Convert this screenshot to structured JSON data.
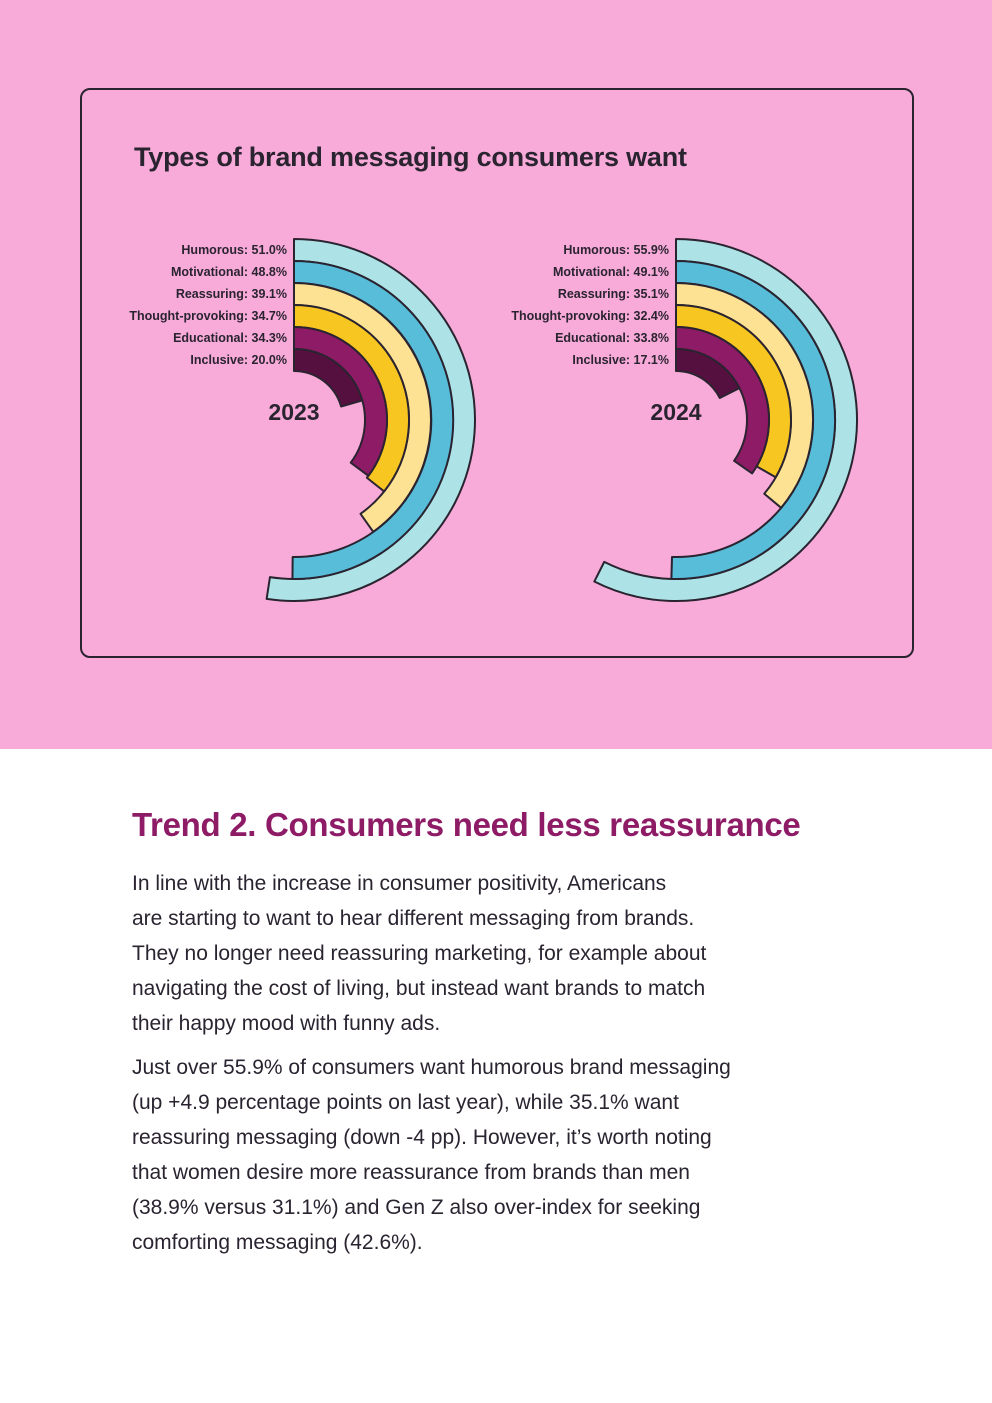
{
  "chart": {
    "title": "Types of brand messaging consumers want"
  },
  "colors": {
    "background_pink": "#f8abd9",
    "heading_purple": "#8e1b66",
    "outline": "#2a2330",
    "series": [
      "#ade3e7",
      "#57bdd9",
      "#fde294",
      "#f8c620",
      "#8e1b66",
      "#561040"
    ]
  },
  "chart_data": [
    {
      "type": "radial-bar",
      "center_label": "2023",
      "categories": [
        "Humorous",
        "Motivational",
        "Reassuring",
        "Thought-provoking",
        "Educational",
        "Inclusive"
      ],
      "values": [
        51.0,
        48.8,
        39.1,
        34.7,
        34.3,
        20.0
      ],
      "labels": [
        "Humorous: 51.0%",
        "Motivational: 48.8%",
        "Reassuring: 39.1%",
        "Thought-provoking: 34.7%",
        "Educational: 34.3%",
        "Inclusive: 20.0%"
      ],
      "unit": "%",
      "range": [
        0,
        100
      ]
    },
    {
      "type": "radial-bar",
      "center_label": "2024",
      "categories": [
        "Humorous",
        "Motivational",
        "Reassuring",
        "Thought-provoking",
        "Educational",
        "Inclusive"
      ],
      "values": [
        55.9,
        49.1,
        35.1,
        32.4,
        33.8,
        17.1
      ],
      "labels": [
        "Humorous: 55.9%",
        "Motivational: 49.1%",
        "Reassuring: 35.1%",
        "Thought-provoking: 32.4%",
        "Educational: 33.8%",
        "Inclusive: 17.1%"
      ],
      "unit": "%",
      "range": [
        0,
        100
      ]
    }
  ],
  "article": {
    "heading": "Trend 2. Consumers need less reassurance",
    "paragraph1_lines": [
      "In line with the increase in consumer positivity, Americans",
      "are starting to want to hear different messaging from brands.",
      "They no longer need reassuring marketing, for example about",
      "navigating the cost of living, but instead want brands to match",
      "their happy mood with funny ads."
    ],
    "paragraph2_lines": [
      "Just over 55.9% of consumers want humorous brand messaging",
      "(up +4.9 percentage points on last year), while 35.1% want",
      "reassuring messaging (down -4 pp). However, it’s worth noting",
      "that women desire more reassurance from brands than men",
      "(38.9% versus 31.1%) and Gen Z also over-index for seeking",
      "comforting messaging (42.6%)."
    ]
  }
}
